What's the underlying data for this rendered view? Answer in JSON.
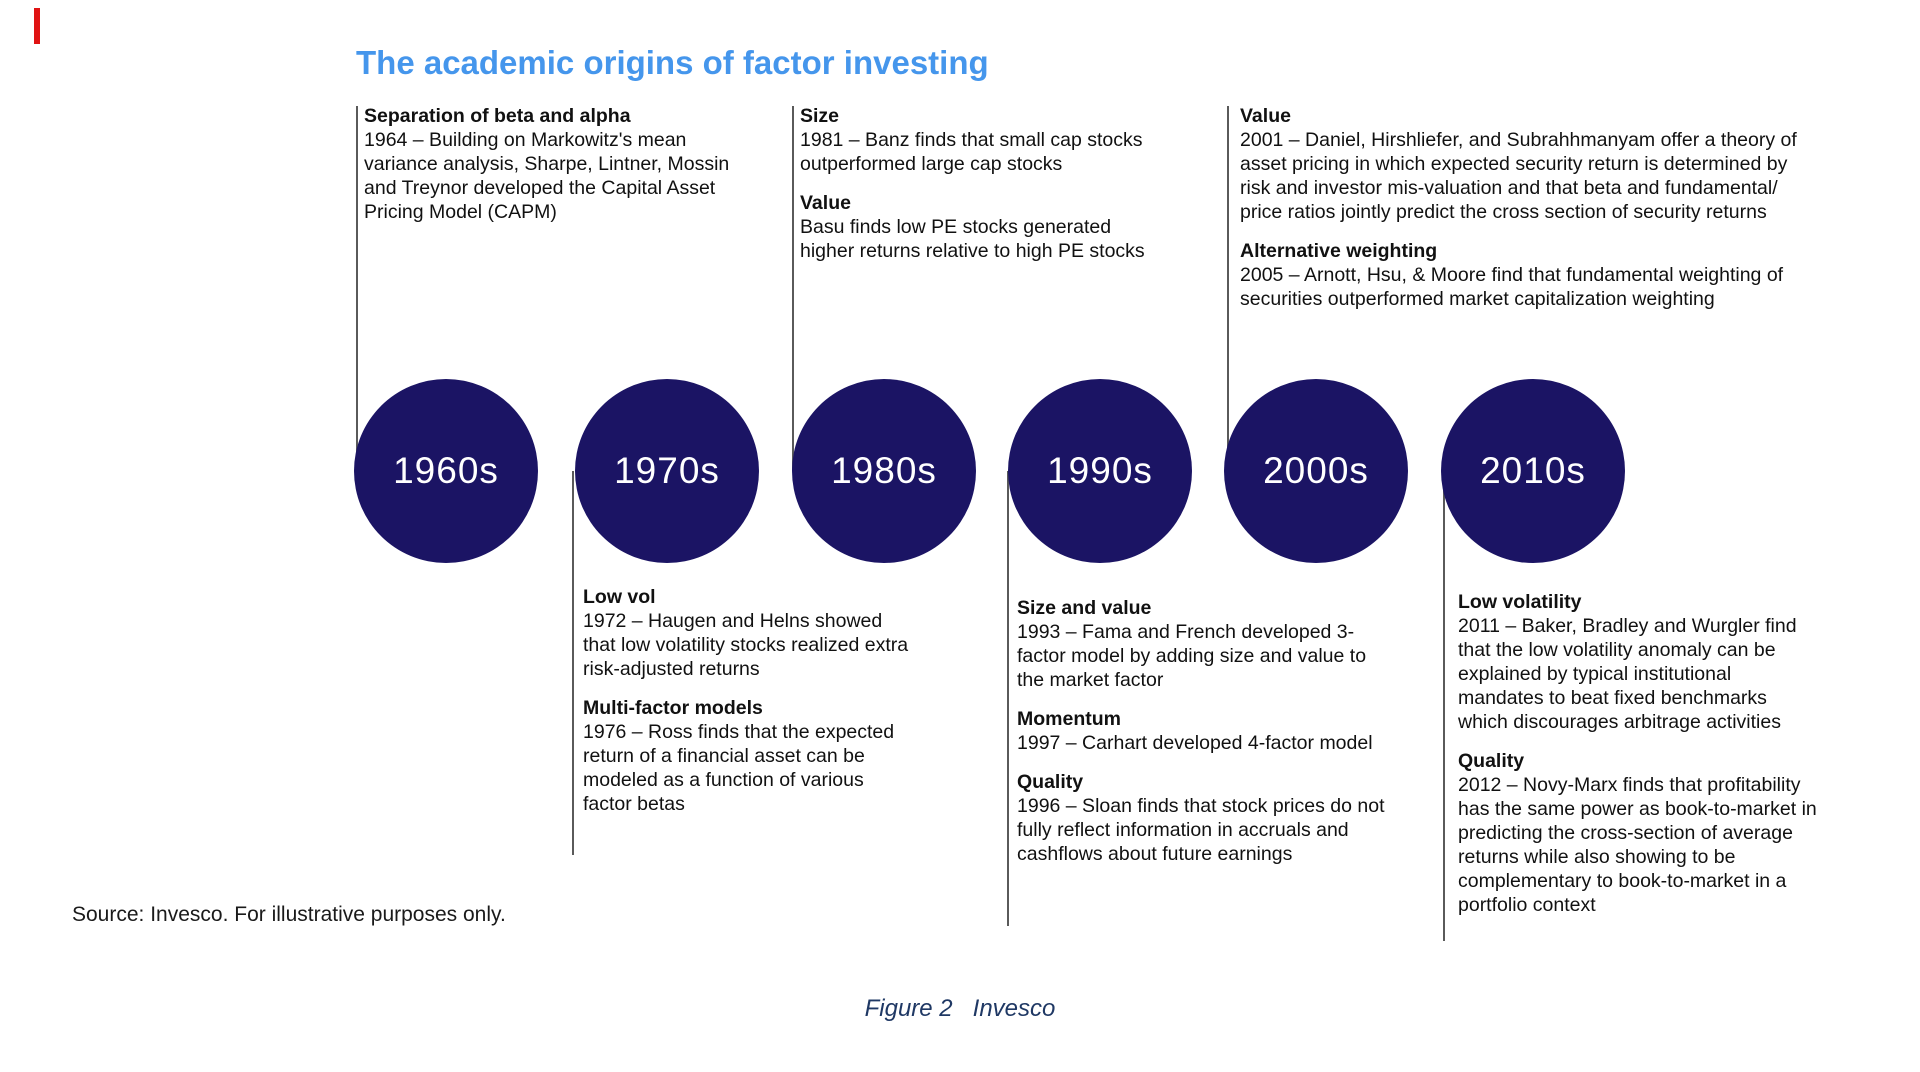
{
  "title": "The academic origins of factor investing",
  "decades": [
    "1960s",
    "1970s",
    "1980s",
    "1990s",
    "2000s",
    "2010s"
  ],
  "top": [
    {
      "decade": "1960s",
      "entries": [
        {
          "title": "Separation of beta and alpha",
          "body": "1964 – Building on Markowitz's mean\nvariance analysis, Sharpe, Lintner, Mossin\nand Treynor developed the Capital Asset\nPricing Model (CAPM)"
        }
      ]
    },
    {
      "decade": "1980s",
      "entries": [
        {
          "title": "Size",
          "body": "1981 – Banz finds that small cap stocks\noutperformed large cap stocks"
        },
        {
          "title": "Value",
          "body": "Basu finds low PE stocks generated\nhigher returns relative to high PE stocks"
        }
      ]
    },
    {
      "decade": "2000s",
      "entries": [
        {
          "title": "Value",
          "body": "2001 – Daniel, Hirshliefer, and Subrahhmanyam offer a theory of\nasset pricing in which expected security return is determined by\nrisk and investor mis-valuation and that beta and fundamental/\nprice ratios jointly predict the cross section of security returns"
        },
        {
          "title": "Alternative weighting",
          "body": "2005 – Arnott, Hsu, & Moore find that fundamental weighting of\nsecurities outperformed market capitalization weighting"
        }
      ]
    }
  ],
  "bottom": [
    {
      "decade": "1970s",
      "entries": [
        {
          "title": "Low vol",
          "body": "1972 – Haugen and Helns showed\nthat low volatility stocks realized extra\nrisk-adjusted returns"
        },
        {
          "title": "Multi-factor models",
          "body": "1976 – Ross finds that the expected\nreturn of a financial asset can be\nmodeled as a function of various\nfactor betas"
        }
      ]
    },
    {
      "decade": "1990s",
      "entries": [
        {
          "title": "Size and value",
          "body": "1993 – Fama and French developed 3-\nfactor model by adding size and value to\nthe market factor"
        },
        {
          "title": "Momentum",
          "body": "1997 – Carhart developed 4-factor model"
        },
        {
          "title": "Quality",
          "body": "1996 – Sloan finds that stock prices do not\nfully reflect information in accruals and\ncashflows about future earnings"
        }
      ]
    },
    {
      "decade": "2010s",
      "entries": [
        {
          "title": "Low volatility",
          "body": "2011 – Baker, Bradley and Wurgler find\nthat the low volatility anomaly can be\nexplained by typical institutional\nmandates to beat fixed benchmarks\nwhich discourages arbitrage activities"
        },
        {
          "title": "Quality",
          "body": "2012 – Novy-Marx finds that profitability\nhas the same power as book-to-market in\npredicting the cross-section of average\nreturns while also showing to be\ncomplementary to book-to-market in a\nportfolio context"
        }
      ]
    }
  ],
  "source_note": "Source: Invesco. For illustrative purposes only.",
  "figure_caption": {
    "label": "Figure 2",
    "text": "Invesco"
  },
  "colors": {
    "accent_blue": "#4596EC",
    "circle_navy": "#1B1464",
    "caption_navy": "#1F3864",
    "line_gray": "#5A5A5A",
    "marker_red": "#E01313"
  }
}
